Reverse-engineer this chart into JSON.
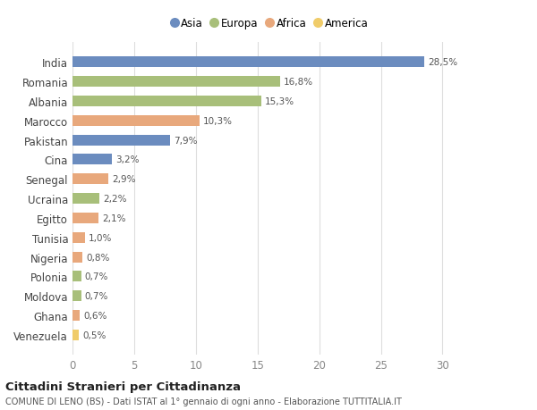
{
  "countries": [
    "India",
    "Romania",
    "Albania",
    "Marocco",
    "Pakistan",
    "Cina",
    "Senegal",
    "Ucraina",
    "Egitto",
    "Tunisia",
    "Nigeria",
    "Polonia",
    "Moldova",
    "Ghana",
    "Venezuela"
  ],
  "values": [
    28.5,
    16.8,
    15.3,
    10.3,
    7.9,
    3.2,
    2.9,
    2.2,
    2.1,
    1.0,
    0.8,
    0.7,
    0.7,
    0.6,
    0.5
  ],
  "labels": [
    "28,5%",
    "16,8%",
    "15,3%",
    "10,3%",
    "7,9%",
    "3,2%",
    "2,9%",
    "2,2%",
    "2,1%",
    "1,0%",
    "0,8%",
    "0,7%",
    "0,7%",
    "0,6%",
    "0,5%"
  ],
  "continents": [
    "Asia",
    "Europa",
    "Europa",
    "Africa",
    "Asia",
    "Asia",
    "Africa",
    "Europa",
    "Africa",
    "Africa",
    "Africa",
    "Europa",
    "Europa",
    "Africa",
    "America"
  ],
  "colors": {
    "Asia": "#6b8cbf",
    "Europa": "#a8bf7a",
    "Africa": "#e8a87c",
    "America": "#f0cc6a"
  },
  "legend_order": [
    "Asia",
    "Europa",
    "Africa",
    "America"
  ],
  "title": "Cittadini Stranieri per Cittadinanza",
  "subtitle": "COMUNE DI LENO (BS) - Dati ISTAT al 1° gennaio di ogni anno - Elaborazione TUTTITALIA.IT",
  "xlim": [
    0,
    32
  ],
  "xticks": [
    0,
    5,
    10,
    15,
    20,
    25,
    30
  ],
  "bg_color": "#ffffff",
  "grid_color": "#dddddd",
  "bar_height": 0.55
}
